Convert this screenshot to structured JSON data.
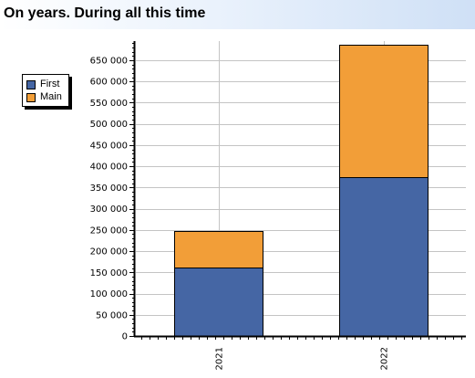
{
  "header": {
    "title": "On years. During all this time"
  },
  "legend": {
    "items": [
      {
        "label": "First",
        "color": "#4566a4"
      },
      {
        "label": "Main",
        "color": "#f29e38"
      }
    ]
  },
  "chart_data": {
    "type": "bar",
    "stacked": true,
    "title": "On years. During all this time",
    "xlabel": "",
    "ylabel": "",
    "categories": [
      "2021",
      "2022"
    ],
    "series": [
      {
        "name": "First",
        "color": "#4566a4",
        "values": [
          161000,
          374000
        ]
      },
      {
        "name": "Main",
        "color": "#f29e38",
        "values": [
          86000,
          313000
        ]
      }
    ],
    "ylim": [
      0,
      695000
    ],
    "y_ticks": [
      0,
      50000,
      100000,
      150000,
      200000,
      250000,
      300000,
      350000,
      400000,
      450000,
      500000,
      550000,
      600000,
      650000
    ],
    "y_tick_labels": [
      "0",
      "50 000",
      "100 000",
      "150 000",
      "200 000",
      "250 000",
      "300 000",
      "350 000",
      "400 000",
      "450 000",
      "500 000",
      "550 000",
      "600 000",
      "650 000"
    ],
    "grid": true,
    "legend_position": "left"
  }
}
